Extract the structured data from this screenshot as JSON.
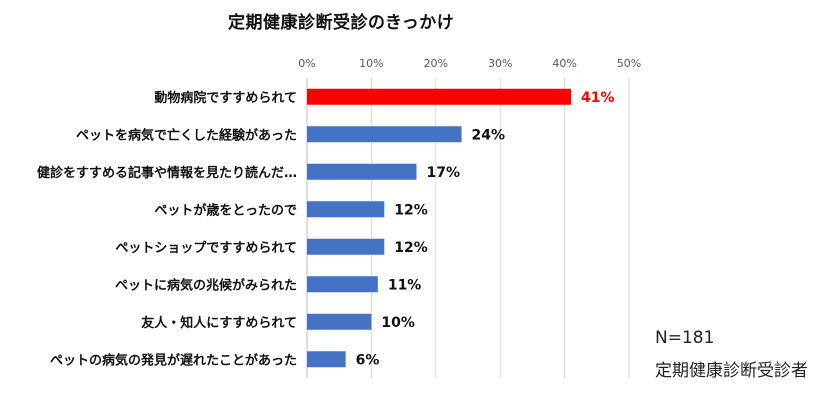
{
  "chart_data": {
    "type": "bar",
    "orientation": "horizontal",
    "title": "定期健康診断受診のきっかけ",
    "categories": [
      "動物病院ですすめられて",
      "ペットを病気で亡くした経験があった",
      "健診をすすめる記事や情報を見たり読んだ…",
      "ペットが歳をとったので",
      "ペットショップですすめられて",
      "ペットに病気の兆候がみられた",
      "友人・知人にすすめられて",
      "ペットの病気の発見が遅れたことがあった"
    ],
    "values": [
      41,
      24,
      17,
      12,
      12,
      11,
      10,
      6
    ],
    "value_labels": [
      "41%",
      "24%",
      "17%",
      "12%",
      "12%",
      "11%",
      "10%",
      "6%"
    ],
    "xlim": [
      0,
      50
    ],
    "xticks": [
      "0%",
      "10%",
      "20%",
      "30%",
      "40%",
      "50%"
    ],
    "grid": true,
    "bar_color": "#4472C4",
    "highlight_color": "#FF0000",
    "highlight_index": 0
  },
  "notes": {
    "n": "N=181",
    "subtitle": "定期健康診断受診者"
  }
}
